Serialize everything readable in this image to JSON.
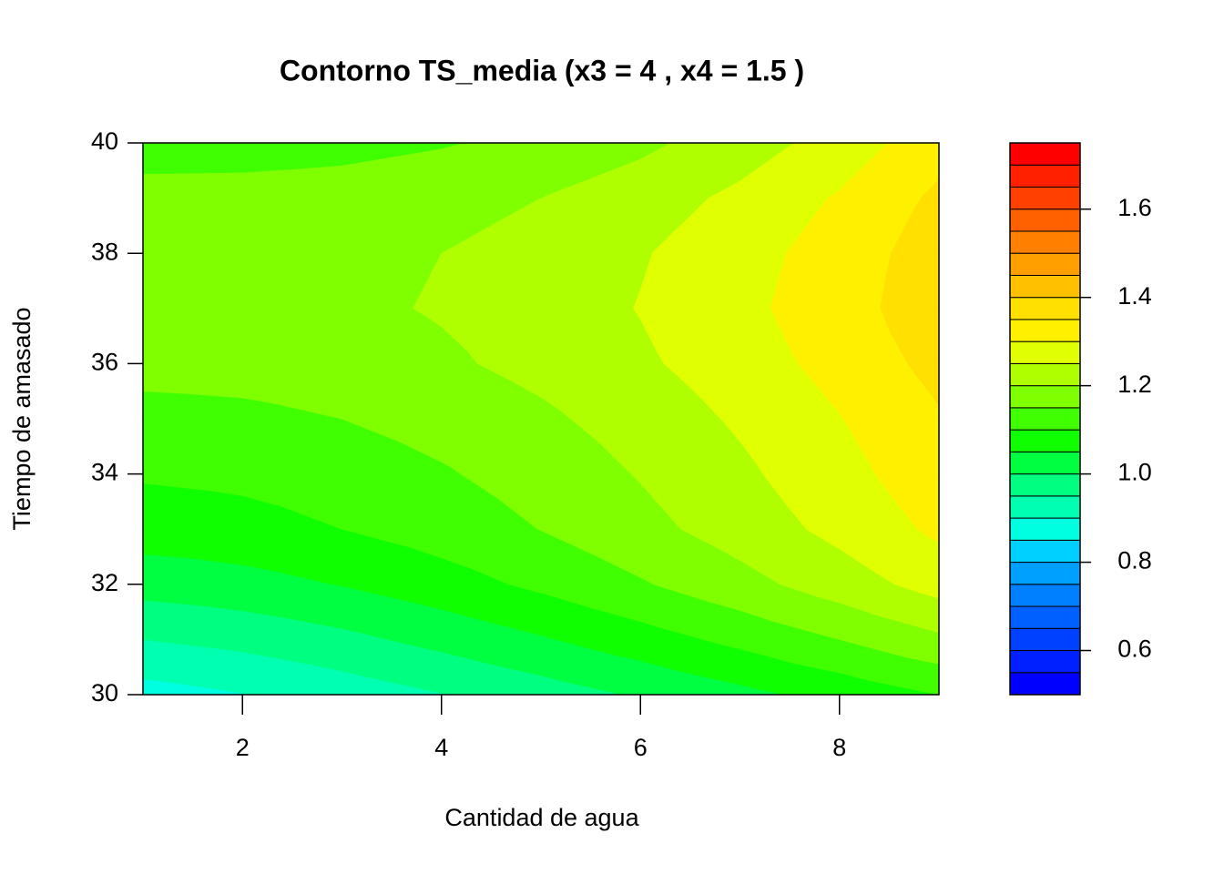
{
  "chart_data": {
    "type": "filled-contour",
    "title": "Contorno TS_media (x3 = 4 , x4 = 1.5 )",
    "x_label": "Cantidad de agua",
    "y_label": "Tiempo de amasado",
    "x": [
      1,
      2,
      3,
      4,
      5,
      6,
      7,
      8,
      9
    ],
    "y": [
      30,
      31,
      32,
      33,
      34,
      35,
      36,
      37,
      38,
      39,
      40
    ],
    "z": [
      [
        0.88,
        0.898,
        0.922,
        0.948,
        0.976,
        1.005,
        1.036,
        1.067,
        1.1
      ],
      [
        0.95,
        0.965,
        0.987,
        1.015,
        1.045,
        1.078,
        1.113,
        1.15,
        1.19
      ],
      [
        1.02,
        1.032,
        1.052,
        1.079,
        1.11,
        1.145,
        1.183,
        1.225,
        1.27
      ],
      [
        1.075,
        1.083,
        1.1,
        1.123,
        1.151,
        1.185,
        1.222,
        1.264,
        1.31
      ],
      [
        1.105,
        1.111,
        1.125,
        1.145,
        1.171,
        1.203,
        1.24,
        1.283,
        1.33
      ],
      [
        1.135,
        1.139,
        1.15,
        1.168,
        1.191,
        1.221,
        1.257,
        1.298,
        1.345
      ],
      [
        1.165,
        1.168,
        1.177,
        1.192,
        1.214,
        1.242,
        1.276,
        1.317,
        1.365
      ],
      [
        1.18,
        1.182,
        1.19,
        1.204,
        1.224,
        1.252,
        1.287,
        1.329,
        1.38
      ],
      [
        1.18,
        1.182,
        1.188,
        1.2,
        1.219,
        1.246,
        1.28,
        1.323,
        1.375
      ],
      [
        1.165,
        1.166,
        1.171,
        1.182,
        1.2,
        1.226,
        1.261,
        1.305,
        1.36
      ],
      [
        1.13,
        1.131,
        1.135,
        1.146,
        1.163,
        1.189,
        1.225,
        1.271,
        1.33
      ]
    ],
    "levels": [
      0.5,
      0.55,
      0.6,
      0.65,
      0.7,
      0.75,
      0.8,
      0.85,
      0.9,
      0.95,
      1.0,
      1.05,
      1.1,
      1.15,
      1.2,
      1.25,
      1.3,
      1.35,
      1.4,
      1.45,
      1.5,
      1.55,
      1.6,
      1.65,
      1.7,
      1.75
    ],
    "colors": [
      "#0000FF",
      "#0020FF",
      "#0040FF",
      "#0060FF",
      "#0080FF",
      "#00A0FF",
      "#00D0FF",
      "#00FFE0",
      "#00FFB0",
      "#00FF80",
      "#00FF40",
      "#10FF00",
      "#40FF00",
      "#80FF00",
      "#B0FF00",
      "#E0FF00",
      "#FFF000",
      "#FFE000",
      "#FFC000",
      "#FFA000",
      "#FF8000",
      "#FF6000",
      "#FF4000",
      "#FF2000",
      "#FF0000"
    ],
    "xlim": [
      1,
      9
    ],
    "ylim": [
      30,
      40
    ],
    "xticks": [
      2,
      4,
      6,
      8
    ],
    "yticks": [
      30,
      32,
      34,
      36,
      38,
      40
    ],
    "zticks": [
      0.6,
      0.8,
      {
        "value": 1,
        "label": "1.0"
      },
      1.2,
      1.4,
      1.6
    ]
  }
}
